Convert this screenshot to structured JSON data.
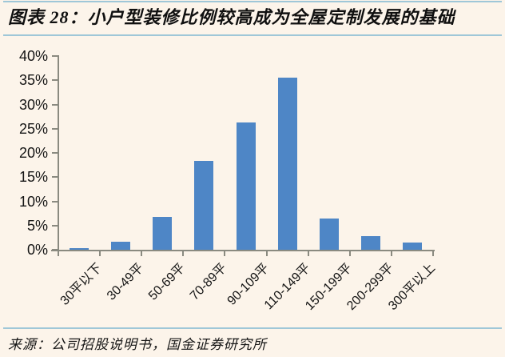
{
  "header": {
    "title": "图表 28：小户型装修比例较高成为全屋定制发展的基础"
  },
  "footer": {
    "source": "来源：公司招股说明书，国金证券研究所"
  },
  "colors": {
    "background": "#fcf4ea",
    "bar": "#4e86c6",
    "axis": "#8a8a80",
    "rule_blue": "#9fc7d8",
    "text": "#141414"
  },
  "chart_data": {
    "type": "bar",
    "title": "图表 28：小户型装修比例较高成为全屋定制发展的基础",
    "categories": [
      "30平以下",
      "30-49平",
      "50-69平",
      "70-89平",
      "90-109平",
      "110-149平",
      "150-199平",
      "200-299平",
      "300平以上"
    ],
    "values": [
      0.3,
      1.7,
      6.7,
      18.3,
      26.3,
      35.5,
      6.4,
      2.8,
      1.5
    ],
    "xlabel": "",
    "ylabel": "",
    "ylim": [
      0,
      40
    ],
    "ytick_step": 5,
    "ytick_labels": [
      "0%",
      "5%",
      "10%",
      "15%",
      "20%",
      "25%",
      "30%",
      "35%",
      "40%"
    ],
    "grid": false,
    "legend_position": "none",
    "bar_color": "#4e86c6",
    "source": "来源：公司招股说明书，国金证券研究所"
  }
}
